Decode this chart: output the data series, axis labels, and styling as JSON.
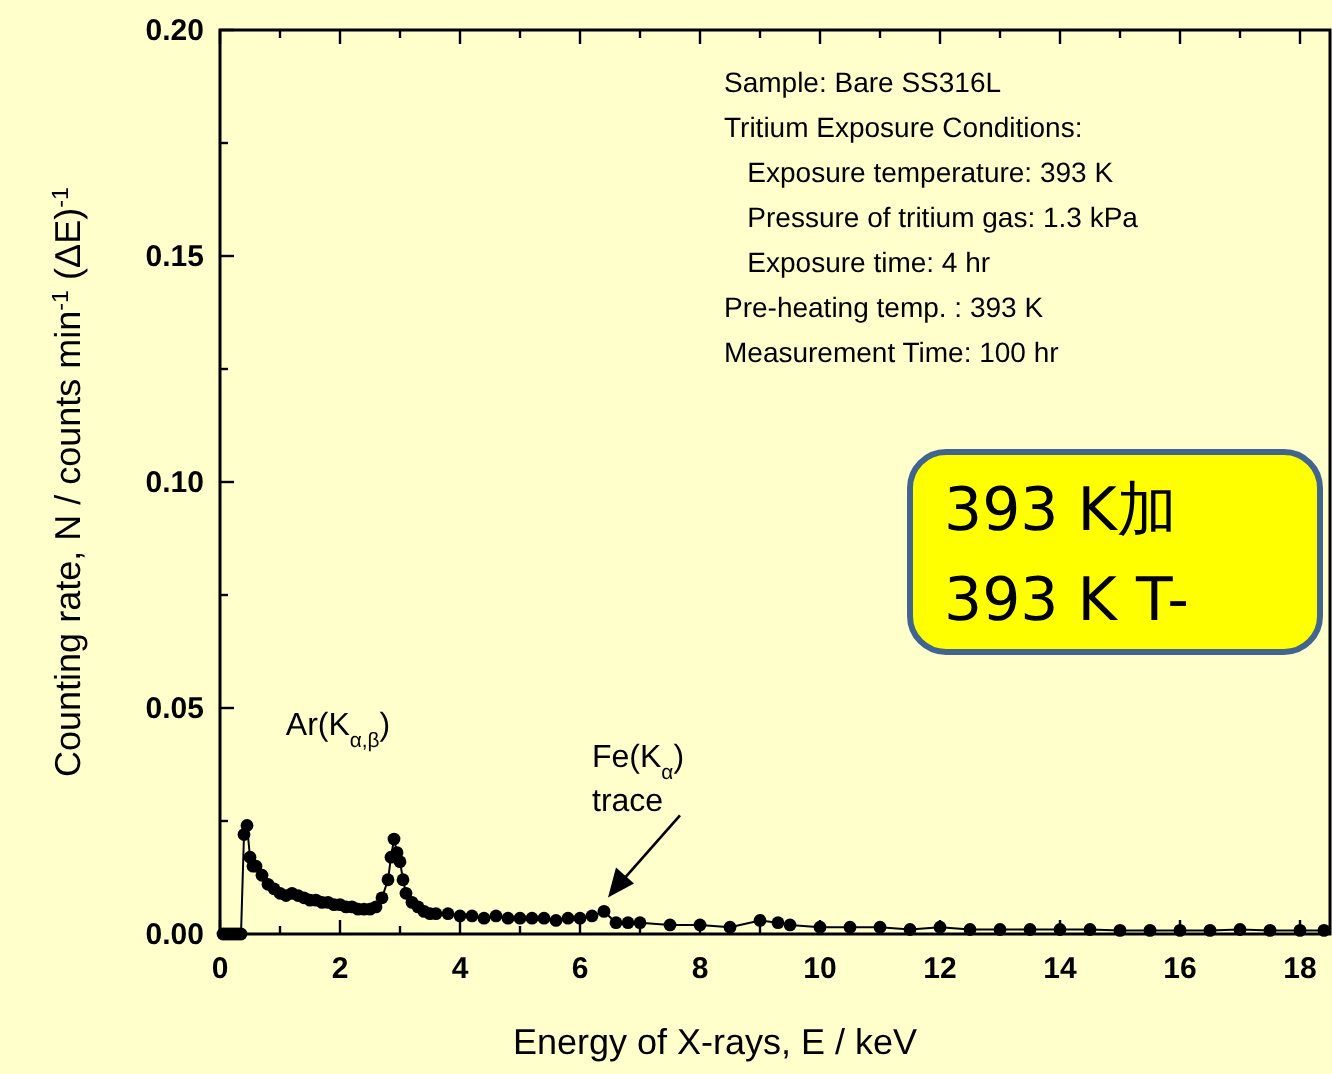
{
  "chart_data": {
    "type": "line",
    "xlabel": "Energy of X-rays, E / keV",
    "ylabel": "Counting rate, N / counts min$^{-1}$ (ΔE)$^{-1}$",
    "x": [
      0.05,
      0.1,
      0.15,
      0.2,
      0.25,
      0.3,
      0.35,
      0.4,
      0.45,
      0.5,
      0.55,
      0.6,
      0.7,
      0.8,
      0.9,
      1.0,
      1.1,
      1.2,
      1.3,
      1.4,
      1.5,
      1.6,
      1.7,
      1.8,
      1.9,
      2.0,
      2.1,
      2.2,
      2.3,
      2.4,
      2.5,
      2.6,
      2.7,
      2.8,
      2.85,
      2.9,
      2.95,
      3.0,
      3.05,
      3.1,
      3.2,
      3.3,
      3.4,
      3.5,
      3.6,
      3.8,
      4.0,
      4.2,
      4.4,
      4.6,
      4.8,
      5.0,
      5.2,
      5.4,
      5.6,
      5.8,
      6.0,
      6.2,
      6.4,
      6.6,
      6.8,
      7.0,
      7.5,
      8.0,
      8.5,
      9.0,
      9.3,
      9.5,
      10.0,
      10.5,
      11.0,
      11.5,
      12.0,
      12.5,
      13.0,
      13.5,
      14.0,
      14.5,
      15.0,
      15.5,
      16.0,
      16.5,
      17.0,
      17.5,
      18.0,
      18.4
    ],
    "series": [
      {
        "color": "#000000",
        "values": [
          0,
          0,
          0,
          0,
          0,
          0,
          0,
          0.022,
          0.024,
          0.017,
          0.015,
          0.015,
          0.013,
          0.011,
          0.01,
          0.009,
          0.0085,
          0.009,
          0.0085,
          0.008,
          0.0075,
          0.0075,
          0.007,
          0.007,
          0.0065,
          0.0065,
          0.006,
          0.006,
          0.0055,
          0.0055,
          0.0055,
          0.006,
          0.008,
          0.012,
          0.017,
          0.021,
          0.018,
          0.016,
          0.012,
          0.009,
          0.007,
          0.006,
          0.005,
          0.0045,
          0.0045,
          0.0045,
          0.004,
          0.004,
          0.0035,
          0.004,
          0.0035,
          0.0035,
          0.0035,
          0.0035,
          0.003,
          0.0035,
          0.0035,
          0.004,
          0.005,
          0.0025,
          0.0025,
          0.0025,
          0.002,
          0.002,
          0.0015,
          0.003,
          0.0025,
          0.002,
          0.0015,
          0.0015,
          0.0015,
          0.001,
          0.0015,
          0.001,
          0.001,
          0.001,
          0.001,
          0.001,
          0.0008,
          0.0008,
          0.0008,
          0.0008,
          0.001,
          0.0008,
          0.0008,
          0.0008
        ]
      }
    ],
    "xlim": [
      0,
      18.5
    ],
    "xticks": [
      0,
      {
        "value": 1,
        "label": null
      },
      2,
      {
        "value": 3,
        "label": null
      },
      4,
      {
        "value": 5,
        "label": null
      },
      6,
      {
        "value": 7,
        "label": null
      },
      8,
      {
        "value": 9,
        "label": null
      },
      10,
      {
        "value": 11,
        "label": null
      },
      12,
      {
        "value": 13,
        "label": null
      },
      14,
      {
        "value": 15,
        "label": null
      },
      16,
      {
        "value": 17,
        "label": null
      },
      18
    ],
    "ylim": [
      0,
      0.2
    ],
    "yticks": [
      {
        "value": 0,
        "label": "0.00"
      },
      {
        "value": 0.025,
        "label": null
      },
      {
        "value": 0.05,
        "label": "0.05"
      },
      {
        "value": 0.075,
        "label": null
      },
      {
        "value": 0.1,
        "label": "0.10"
      },
      {
        "value": 0.125,
        "label": null
      },
      {
        "value": 0.15,
        "label": "0.15"
      },
      {
        "value": 0.175,
        "label": null
      },
      {
        "value": 0.2,
        "label": "0.20"
      }
    ],
    "marker": "circle",
    "grid": false,
    "annotations": [
      "Sample: Bare SS316L",
      "Tritium Exposure Conditions:",
      "   Exposure temperature: 393 K",
      "   Pressure of tritium gas: 1.3 kPa",
      "   Exposure time: 4 hr",
      "Pre-heating temp. : 393 K",
      "Measurement Time: 100 hr",
      {
        "text": "Ar(K$_{α,β}$)",
        "x": 2.9,
        "y": 0.021
      },
      {
        "text": "Fe(K$_{α}$)\ntrace",
        "x": 6.4,
        "y": 0.005
      },
      "393 K加\n393 K T-"
    ]
  }
}
